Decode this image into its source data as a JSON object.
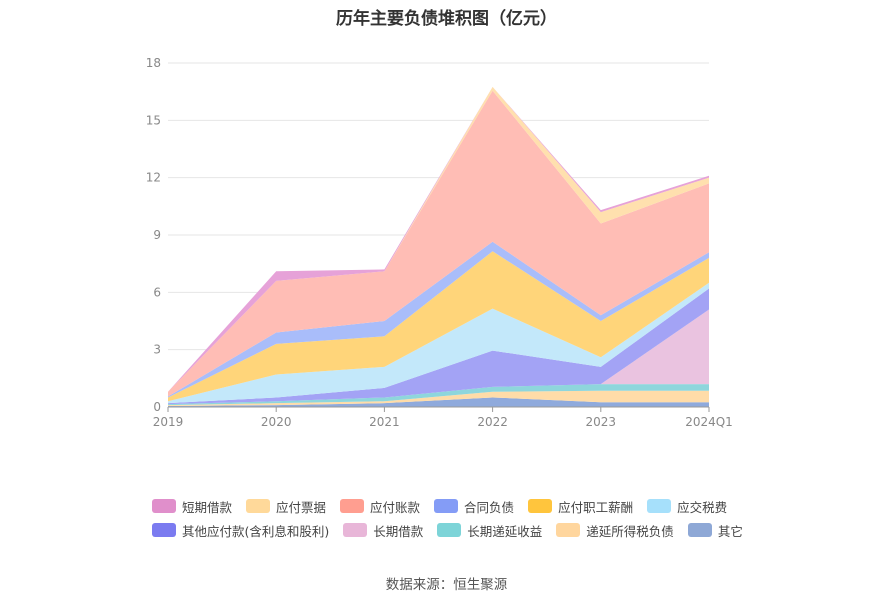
{
  "source": "数据来源：恒生聚源",
  "chart_data": {
    "type": "area",
    "stacked": true,
    "title": "历年主要负债堆积图（亿元）",
    "xlabel": "",
    "ylabel": "",
    "categories": [
      "2019",
      "2020",
      "2021",
      "2022",
      "2023",
      "2024Q1"
    ],
    "ylim": [
      0,
      18
    ],
    "yticks": [
      0,
      3,
      6,
      9,
      12,
      15,
      18
    ],
    "grid": true,
    "legend_position": "bottom",
    "series": [
      {
        "name": "其它",
        "color": "#8faadc",
        "values": [
          0.05,
          0.1,
          0.2,
          0.5,
          0.25,
          0.25
        ]
      },
      {
        "name": "递延所得税负债",
        "color": "#ffdca8",
        "values": [
          0.05,
          0.1,
          0.1,
          0.3,
          0.6,
          0.6
        ]
      },
      {
        "name": "长期递延收益",
        "color": "#8ed6dc",
        "values": [
          0.05,
          0.1,
          0.2,
          0.25,
          0.35,
          0.35
        ]
      },
      {
        "name": "长期借款",
        "color": "#eac3e0",
        "values": [
          0,
          0,
          0,
          0,
          0,
          3.9
        ]
      },
      {
        "name": "其他应付款(含利息和股利)",
        "color": "#a3a3f5",
        "values": [
          0.05,
          0.2,
          0.5,
          1.9,
          0.9,
          1.1
        ]
      },
      {
        "name": "应交税费",
        "color": "#c3e8fa",
        "values": [
          0.1,
          1.2,
          1.1,
          2.2,
          0.5,
          0.3
        ]
      },
      {
        "name": "应付职工薪酬",
        "color": "#ffd57a",
        "values": [
          0.2,
          1.6,
          1.6,
          3.0,
          1.9,
          1.3
        ]
      },
      {
        "name": "合同负债",
        "color": "#a9bdfa",
        "values": [
          0.05,
          0.6,
          0.8,
          0.5,
          0.3,
          0.3
        ]
      },
      {
        "name": "应付账款",
        "color": "#ffbdb5",
        "values": [
          0.25,
          2.7,
          2.6,
          7.9,
          4.8,
          3.6
        ]
      },
      {
        "name": "应付票据",
        "color": "#ffe0ae",
        "values": [
          0,
          0,
          0,
          0.2,
          0.6,
          0.3
        ]
      },
      {
        "name": "短期借款",
        "color": "#e6a2d8",
        "values": [
          0,
          0.5,
          0.1,
          0,
          0.1,
          0.1
        ]
      }
    ],
    "legend_rows": [
      [
        "短期借款",
        "应付票据",
        "应付账款",
        "合同负债",
        "应付职工薪酬",
        "应交税费"
      ],
      [
        "其他应付款(含利息和股利)",
        "长期借款",
        "长期递延收益",
        "递延所得税负债",
        "其它"
      ]
    ],
    "legend_colors": {
      "短期借款": "#e08fcb",
      "应付票据": "#ffd99a",
      "应付账款": "#ff9e90",
      "合同负债": "#849cf6",
      "应付职工薪酬": "#ffc53d",
      "应交税费": "#a6e0fb",
      "其他应付款(含利息和股利)": "#7b7bf0",
      "长期借款": "#e8b6d8",
      "长期递延收益": "#7dd4d8",
      "递延所得税负债": "#ffd69e",
      "其它": "#8ea8d6"
    }
  }
}
